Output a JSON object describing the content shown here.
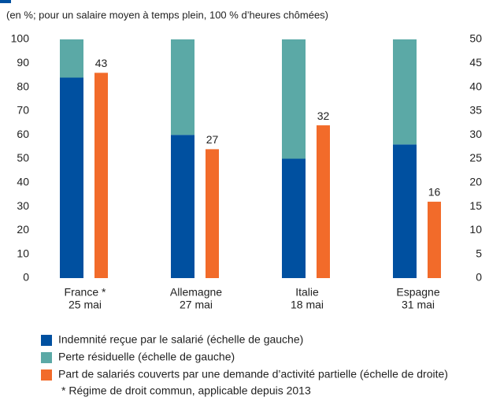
{
  "chart_data": {
    "type": "bar",
    "subtitle": "(en %; pour un salaire moyen à temps plein, 100 % d’heures chômées)",
    "categories": [
      [
        "France *",
        "25 mai"
      ],
      [
        "Allemagne",
        "27 mai"
      ],
      [
        "Italie",
        "18 mai"
      ],
      [
        "Espagne",
        "31 mai"
      ]
    ],
    "series": [
      {
        "name": "Indemnité reçue par le salarié (échelle de gauche)",
        "color": "#0050a0",
        "values": [
          84,
          60,
          50,
          56
        ],
        "stack": "a"
      },
      {
        "name": "Perte résiduelle (échelle de gauche)",
        "color": "#5ba9a6",
        "values": [
          16,
          40,
          50,
          44
        ],
        "stack": "a"
      },
      {
        "name": "Part de salariés couverts par une demande d’activité partielle (échelle de droite)",
        "color": "#f26b2a",
        "values": [
          43,
          27,
          32,
          16
        ],
        "axis": "y2"
      }
    ],
    "ylim": [
      0,
      100
    ],
    "yticks": [
      0,
      10,
      20,
      30,
      40,
      50,
      60,
      70,
      80,
      90,
      100
    ],
    "y2lim": [
      0,
      50
    ],
    "y2ticks": [
      0,
      5,
      10,
      15,
      20,
      25,
      30,
      35,
      40,
      45,
      50
    ],
    "footnote": "* Régime de droit commun, applicable depuis 2013"
  }
}
